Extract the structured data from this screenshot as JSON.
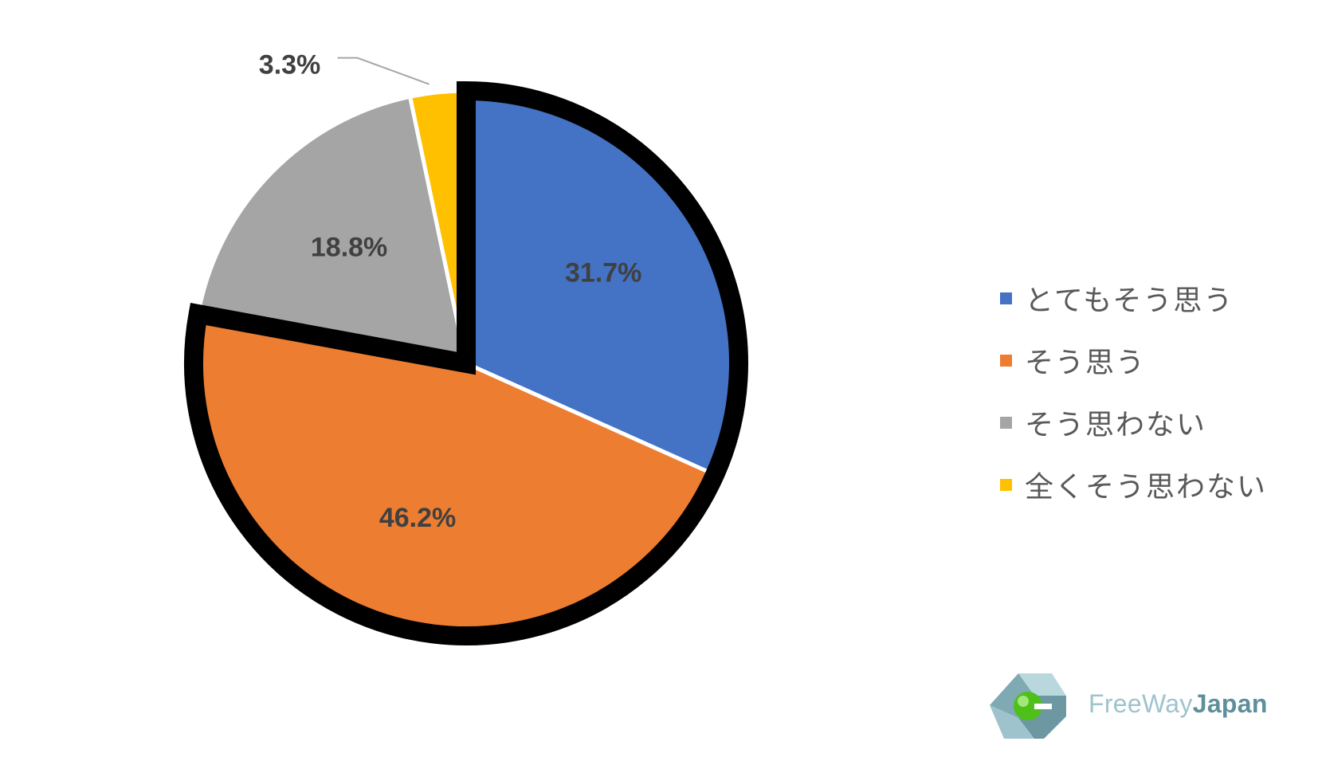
{
  "chart_data": {
    "type": "pie",
    "categories": [
      "とてもそう思う",
      "そう思う",
      "そう思わない",
      "全くそう思わない"
    ],
    "values": [
      31.7,
      46.2,
      18.8,
      3.3
    ],
    "data_labels": [
      "31.7%",
      "46.2%",
      "18.8%",
      "3.3%"
    ],
    "colors": [
      "#4472c4",
      "#ed7d31",
      "#a5a5a5",
      "#ffc000"
    ],
    "highlighted_slices": [
      "とてもそう思う",
      "そう思う"
    ],
    "highlight_color": "#000000",
    "legend_position": "right",
    "title": ""
  },
  "watermark": {
    "text_part1": "FreeWay",
    "text_part2": "Japan"
  }
}
